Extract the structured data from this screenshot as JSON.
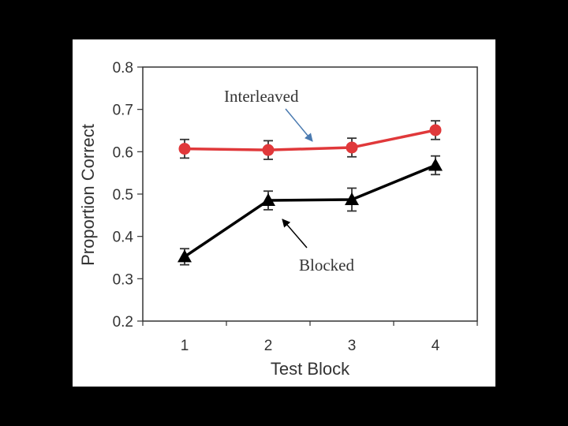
{
  "chart_data": {
    "type": "line",
    "xlabel": "Test Block",
    "ylabel": "Proportion Correct",
    "x": [
      1,
      2,
      3,
      4
    ],
    "xticks": [
      "1",
      "2",
      "3",
      "4"
    ],
    "ylim": [
      0.2,
      0.8
    ],
    "yticks": [
      "0.2",
      "0.3",
      "0.4",
      "0.5",
      "0.6",
      "0.7",
      "0.8"
    ],
    "grid": false,
    "series": [
      {
        "name": "Interleaved",
        "values": [
          0.607,
          0.604,
          0.61,
          0.651
        ],
        "errors": [
          0.022,
          0.022,
          0.022,
          0.022
        ],
        "color": "#e0383a",
        "marker": "circle"
      },
      {
        "name": "Blocked",
        "values": [
          0.352,
          0.485,
          0.487,
          0.568
        ],
        "errors": [
          0.019,
          0.022,
          0.027,
          0.022
        ],
        "color": "#000000",
        "marker": "triangle"
      }
    ],
    "annotations": [
      {
        "text": "Interleaved",
        "arrow_color": "#4a7ab0"
      },
      {
        "text": "Blocked",
        "arrow_color": "#000000"
      }
    ]
  }
}
